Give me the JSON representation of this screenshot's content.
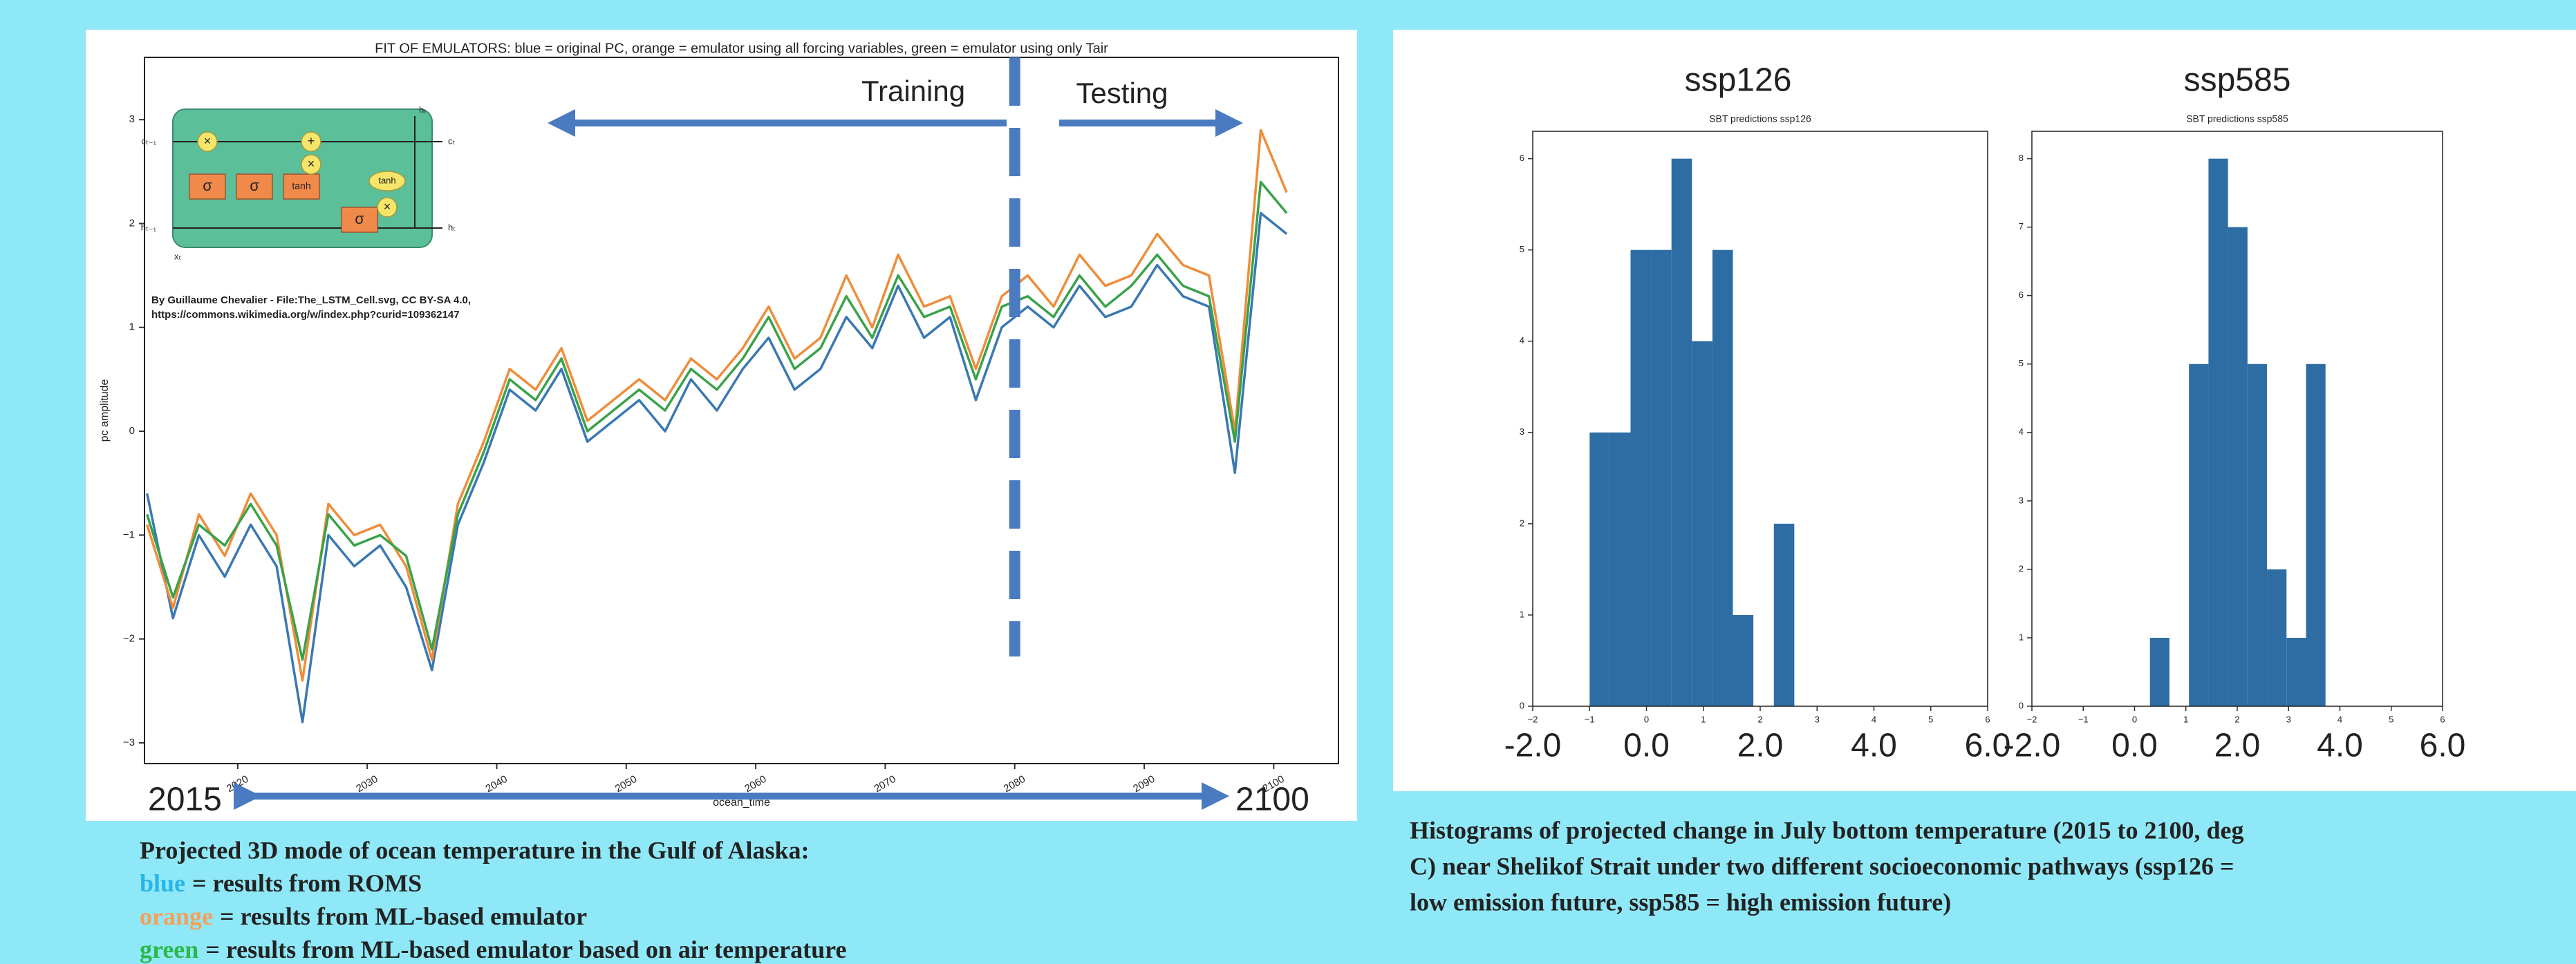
{
  "chart_data": [
    {
      "type": "line",
      "title": "FIT OF EMULATORS: blue = original PC, orange = emulator using all forcing variables, green = emulator using only Tair",
      "x_label": "ocean_time",
      "y_label": "pc amplitude",
      "x": [
        2013,
        2015,
        2017,
        2019,
        2021,
        2023,
        2025,
        2027,
        2029,
        2031,
        2033,
        2035,
        2037,
        2039,
        2041,
        2043,
        2045,
        2047,
        2049,
        2051,
        2053,
        2055,
        2057,
        2059,
        2061,
        2063,
        2065,
        2067,
        2069,
        2071,
        2073,
        2075,
        2077,
        2079,
        2081,
        2083,
        2085,
        2087,
        2089,
        2091,
        2093,
        2095,
        2097,
        2099,
        2101
      ],
      "series": [
        {
          "color": "#3a78b2",
          "values": [
            -0.6,
            -1.8,
            -1.0,
            -1.4,
            -0.9,
            -1.3,
            -2.8,
            -1.0,
            -1.3,
            -1.1,
            -1.5,
            -2.3,
            -0.9,
            -0.3,
            0.4,
            0.2,
            0.6,
            -0.1,
            0.1,
            0.3,
            0.0,
            0.5,
            0.2,
            0.6,
            0.9,
            0.4,
            0.6,
            1.1,
            0.8,
            1.4,
            0.9,
            1.1,
            0.3,
            1.0,
            1.2,
            1.0,
            1.4,
            1.1,
            1.2,
            1.6,
            1.3,
            1.2,
            -0.4,
            2.1,
            1.9
          ]
        },
        {
          "color": "#ee8d3c",
          "values": [
            -0.9,
            -1.7,
            -0.8,
            -1.2,
            -0.6,
            -1.0,
            -2.4,
            -0.7,
            -1.0,
            -0.9,
            -1.3,
            -2.2,
            -0.7,
            -0.1,
            0.6,
            0.4,
            0.8,
            0.1,
            0.3,
            0.5,
            0.3,
            0.7,
            0.5,
            0.8,
            1.2,
            0.7,
            0.9,
            1.5,
            1.0,
            1.7,
            1.2,
            1.3,
            0.6,
            1.3,
            1.5,
            1.2,
            1.7,
            1.4,
            1.5,
            1.9,
            1.6,
            1.5,
            0.0,
            2.9,
            2.3
          ]
        },
        {
          "color": "#3aa24a",
          "values": [
            -0.8,
            -1.6,
            -0.9,
            -1.1,
            -0.7,
            -1.1,
            -2.2,
            -0.8,
            -1.1,
            -1.0,
            -1.2,
            -2.1,
            -0.8,
            -0.2,
            0.5,
            0.3,
            0.7,
            0.0,
            0.2,
            0.4,
            0.2,
            0.6,
            0.4,
            0.7,
            1.1,
            0.6,
            0.8,
            1.3,
            0.9,
            1.5,
            1.1,
            1.2,
            0.5,
            1.2,
            1.3,
            1.1,
            1.5,
            1.2,
            1.4,
            1.7,
            1.4,
            1.3,
            -0.1,
            2.4,
            2.1
          ]
        }
      ],
      "xlim": [
        2012.8,
        2105
      ],
      "xticks": [
        2020,
        2030,
        2040,
        2050,
        2060,
        2070,
        2080,
        2090,
        2100
      ],
      "ylim": [
        -3.2,
        3.6
      ],
      "yticks": [
        {
          "value": -3,
          "label": "−3"
        },
        {
          "value": -2,
          "label": "−2"
        },
        {
          "value": -1,
          "label": "−1"
        },
        0,
        1,
        2,
        3
      ],
      "annotations": {
        "training": "Training",
        "testing": "Testing",
        "start": "2015",
        "end": "2100",
        "credit": [
          "By Guillaume Chevalier - File:The_LSTM_Cell.svg, CC BY-SA 4.0,",
          "https://commons.wikimedia.org/w/index.php?curid=109362147"
        ]
      },
      "lstm_diagram": {
        "gates": [
          "σ",
          "σ",
          "tanh",
          "σ"
        ],
        "ops": [
          "×",
          "+",
          "×",
          "tanh",
          "×"
        ],
        "io": [
          "cₜ₋₁",
          "hₜ₋₁",
          "xₜ",
          "cₜ",
          "hₜ",
          "hₜ"
        ]
      }
    },
    {
      "type": "histogram",
      "title": "ssp126",
      "subtitle": "SBT predictions ssp126",
      "bins": [
        -1.0,
        -0.64,
        -0.28,
        0.08,
        0.44,
        0.8,
        1.16,
        1.52,
        1.88,
        2.24,
        2.6
      ],
      "values": [
        3,
        3,
        5,
        5,
        6,
        4,
        5,
        1,
        0,
        2
      ],
      "color": "#2e6da4",
      "xlim": [
        -2,
        6
      ],
      "xticks": [
        {
          "value": -2,
          "label": "−2"
        },
        {
          "value": -1,
          "label": "−1"
        },
        0,
        1,
        2,
        3,
        4,
        5,
        6
      ],
      "big_xtick_labels": [
        {
          "value": -2,
          "label": "-2.0"
        },
        {
          "value": 0,
          "label": "0.0"
        },
        {
          "value": 2,
          "label": "2.0"
        },
        {
          "value": 4,
          "label": "4.0"
        },
        {
          "value": 6,
          "label": "6.0"
        }
      ],
      "ylim": [
        0,
        6.3
      ],
      "yticks": [
        0,
        1,
        2,
        3,
        4,
        5,
        6
      ]
    },
    {
      "type": "histogram",
      "title": "ssp585",
      "subtitle": "SBT predictions ssp585",
      "bins": [
        0.3,
        0.68,
        1.06,
        1.44,
        1.82,
        2.2,
        2.58,
        2.96,
        3.34,
        3.72
      ],
      "values": [
        1,
        0,
        5,
        8,
        7,
        5,
        2,
        1,
        5
      ],
      "color": "#2e6da4",
      "xlim": [
        -2,
        6
      ],
      "xticks": [
        {
          "value": -2,
          "label": "−2"
        },
        {
          "value": -1,
          "label": "−1"
        },
        0,
        1,
        2,
        3,
        4,
        5,
        6
      ],
      "big_xtick_labels": [
        {
          "value": -2,
          "label": "-2.0"
        },
        {
          "value": 0,
          "label": "0.0"
        },
        {
          "value": 2,
          "label": "2.0"
        },
        {
          "value": 4,
          "label": "4.0"
        },
        {
          "value": 6,
          "label": "6.0"
        }
      ],
      "ylim": [
        0,
        8.4
      ],
      "yticks": [
        0,
        1,
        2,
        3,
        4,
        5,
        6,
        7,
        8
      ]
    }
  ],
  "captions": {
    "left": {
      "heading": "Projected 3D mode of ocean temperature in the Gulf of Alaska:",
      "items": [
        {
          "word": "blue",
          "color": "#28b4e8",
          "text": "= results from ROMS"
        },
        {
          "word": "orange",
          "color": "#f5a05a",
          "text": "= results from ML-based emulator"
        },
        {
          "word": "green",
          "color": "#2db84a",
          "text": "= results from ML-based emulator based on air temperature"
        }
      ]
    },
    "right": {
      "lines": [
        "Histograms of projected change in July bottom temperature (2015 to 2100, deg",
        "C) near Shelikof Strait under two different socioeconomic pathways (ssp126 =",
        "low emission future, ssp585 = high emission future)"
      ]
    }
  }
}
